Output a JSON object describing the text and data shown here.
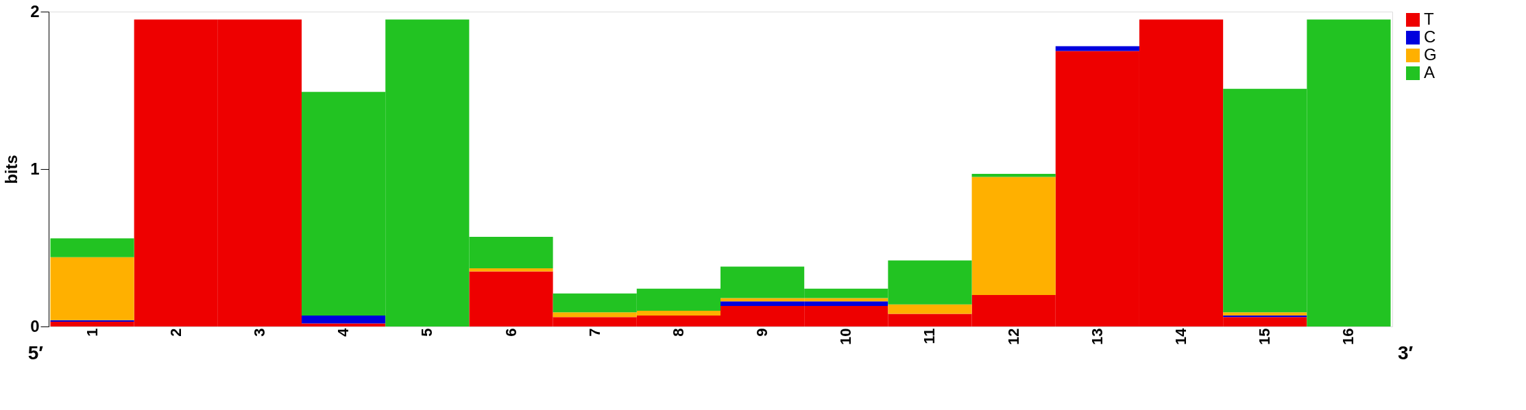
{
  "chart_data": {
    "type": "bar",
    "stacked": true,
    "ylabel": "bits",
    "ylim": [
      0,
      2
    ],
    "yticks": [
      0,
      1,
      2
    ],
    "grid": false,
    "legend": "right",
    "categories": [
      "1",
      "2",
      "3",
      "4",
      "5",
      "6",
      "7",
      "8",
      "9",
      "10",
      "11",
      "12",
      "13",
      "14",
      "15",
      "16"
    ],
    "series": [
      {
        "name": "T",
        "color": "#ee0000",
        "values": [
          0.03,
          1.95,
          1.95,
          0.02,
          0,
          0.35,
          0.06,
          0.07,
          0.13,
          0.13,
          0.08,
          0.2,
          1.75,
          1.95,
          0.06,
          0
        ]
      },
      {
        "name": "C",
        "color": "#0000dd",
        "values": [
          0.01,
          0,
          0,
          0.05,
          0,
          0,
          0,
          0,
          0.03,
          0.03,
          0,
          0,
          0.03,
          0,
          0.01,
          0
        ]
      },
      {
        "name": "G",
        "color": "#ffb000",
        "values": [
          0.4,
          0,
          0,
          0,
          0,
          0.02,
          0.03,
          0.03,
          0.02,
          0.02,
          0.06,
          0.75,
          0,
          0,
          0.02,
          0
        ]
      },
      {
        "name": "A",
        "color": "#22c322",
        "values": [
          0.12,
          0,
          0,
          1.42,
          1.95,
          0.2,
          0.12,
          0.14,
          0.2,
          0.06,
          0.28,
          0.02,
          0,
          0,
          1.42,
          1.95
        ]
      }
    ],
    "annotations": [
      "5′",
      "3′"
    ]
  }
}
